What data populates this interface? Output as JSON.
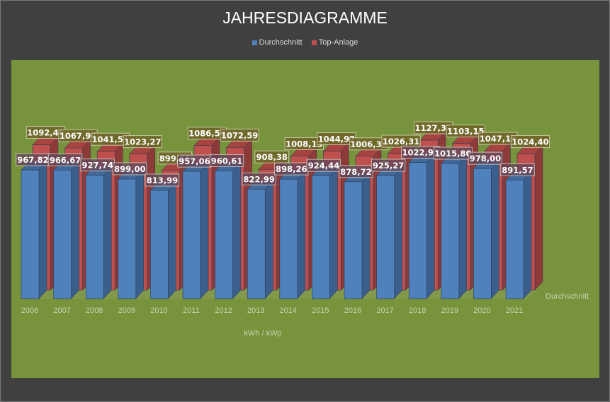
{
  "chart_data": {
    "type": "bar",
    "title": "JAHRESDIAGRAMME",
    "categories": [
      "2006",
      "2007",
      "2008",
      "2009",
      "2010",
      "2011",
      "2012",
      "2013",
      "2014",
      "2015",
      "2016",
      "2017",
      "2018",
      "2019",
      "2020",
      "2021"
    ],
    "series": [
      {
        "name": "Durchschnitt",
        "color": "#4f81bd",
        "values": [
          967.82,
          966.67,
          927.74,
          899.0,
          813.99,
          957.06,
          960.61,
          822.99,
          898.26,
          924.44,
          878.72,
          925.27,
          1022.93,
          1015.8,
          978.0,
          891.57
        ],
        "labels": [
          "967,82",
          "966,67",
          "927,74",
          "899,00",
          "813,99",
          "957,06",
          "960,61",
          "822,99",
          "898,26",
          "924,44",
          "878,72",
          "925,27",
          "1022,93",
          "1015,80",
          "978,00",
          "891,57"
        ]
      },
      {
        "name": "Top-Anlage",
        "color": "#c0504d",
        "values": [
          1092.48,
          1067.96,
          1041.51,
          1023.27,
          899.66,
          1086.5,
          1072.59,
          908.38,
          1008.13,
          1044.92,
          1006.39,
          1026.31,
          1127.31,
          1103.15,
          1047.16,
          1024.4
        ],
        "labels": [
          "1092,48",
          "1067,96",
          "1041,51",
          "1023,27",
          "899,66",
          "1086,50",
          "1072,59",
          "908,38",
          "1008,13",
          "1044,92",
          "1006,39",
          "1026,31",
          "1127,31",
          "1103,15",
          "1047,16",
          "1024,40"
        ]
      }
    ],
    "xlabel": "kWh / kWp",
    "depth_axis_label": "Durchschnitt",
    "grid": false,
    "legend": "top",
    "background_color": "#77933c"
  }
}
